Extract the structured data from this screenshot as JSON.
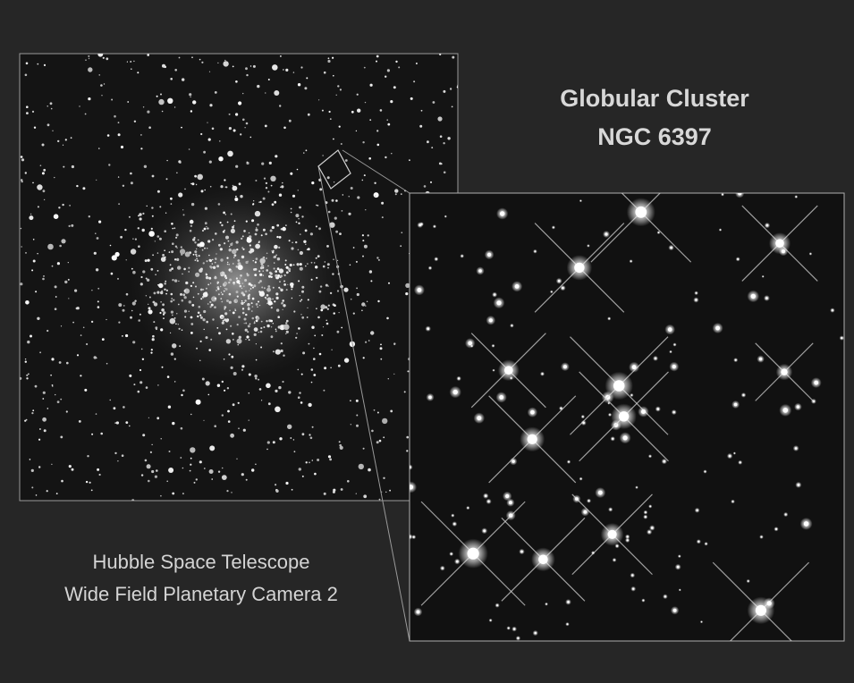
{
  "title": {
    "line1": "Globular Cluster",
    "line2": "NGC 6397"
  },
  "credit": {
    "line1": "Hubble Space Telescope",
    "line2": "Wide Field Planetary Camera 2"
  }
}
